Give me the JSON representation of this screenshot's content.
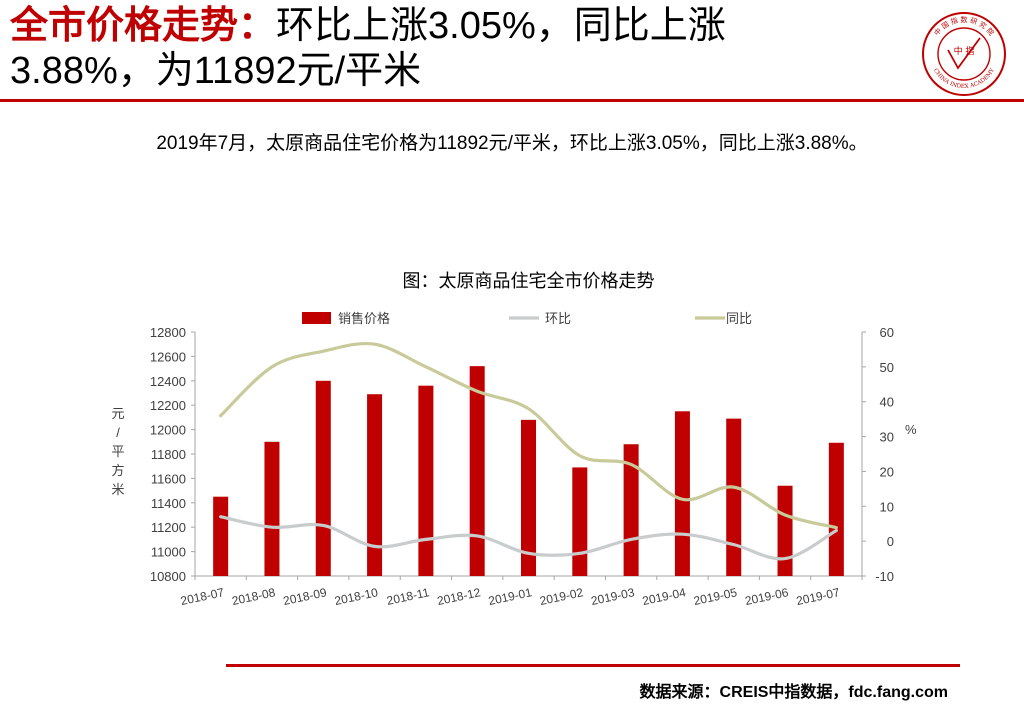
{
  "header": {
    "title_highlight": "全市价格走势：",
    "title_line1_rest": "环比上涨3.05%，同比上涨",
    "title_line2": "3.88%，为11892元/平米"
  },
  "logo": {
    "center_text": "中 指",
    "ring_top_text": "中 国 指 数 研 究 院",
    "ring_bottom_text": "CHINA INDEX ACADEMY"
  },
  "summary": "2019年7月，太原商品住宅价格为11892元/平米，环比上涨3.05%，同比上涨3.88%。",
  "chart_data": {
    "type": "bar",
    "title": "图：太原商品住宅全市价格走势",
    "categories": [
      "2018-07",
      "2018-08",
      "2018-09",
      "2018-10",
      "2018-11",
      "2018-12",
      "2019-01",
      "2019-02",
      "2019-03",
      "2019-04",
      "2019-05",
      "2019-06",
      "2019-07"
    ],
    "series": [
      {
        "name": "销售价格",
        "type": "bar",
        "axis": "left",
        "color": "#c00000",
        "values": [
          11450,
          11900,
          12400,
          12290,
          12360,
          12520,
          12080,
          11690,
          11880,
          12150,
          12090,
          11540,
          11892
        ]
      },
      {
        "name": "环比",
        "type": "line",
        "axis": "right",
        "color": "#c9cccd",
        "values": [
          7,
          4,
          4.5,
          -1.5,
          0.5,
          1.5,
          -3.5,
          -3.5,
          0.5,
          2,
          -1,
          -5,
          3.05
        ]
      },
      {
        "name": "同比",
        "type": "line",
        "axis": "right",
        "color": "#c8ca9a",
        "values": [
          36,
          50,
          54.5,
          56.5,
          50,
          43,
          38,
          24.5,
          22,
          12,
          15.5,
          7.5,
          3.88
        ]
      }
    ],
    "ylabel": "元/平方米",
    "ylim": [
      10800,
      12800
    ],
    "yticks": [
      10800,
      11000,
      11200,
      11400,
      11600,
      11800,
      12000,
      12200,
      12400,
      12600,
      12800
    ],
    "y2label": "%",
    "y2lim": [
      -10,
      60
    ],
    "y2ticks": [
      -10,
      0,
      10,
      20,
      30,
      40,
      50,
      60
    ],
    "legend": "top-center",
    "grid": false
  },
  "source": "数据来源：CREIS中指数据，fdc.fang.com"
}
